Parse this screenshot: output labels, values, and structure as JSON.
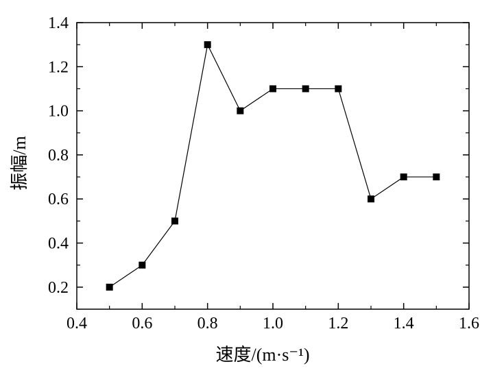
{
  "chart_data": {
    "type": "line",
    "title": "",
    "xlabel": "速度/(m·s⁻¹)",
    "ylabel": "振幅/m",
    "xlim": [
      0.4,
      1.6
    ],
    "ylim": [
      0.1,
      1.4
    ],
    "x_ticks": [
      0.4,
      0.6,
      0.8,
      1.0,
      1.2,
      1.4,
      1.6
    ],
    "x_tick_labels": [
      "0.4",
      "0.6",
      "0.8",
      "1.0",
      "1.2",
      "1.4",
      "1.6"
    ],
    "y_ticks": [
      0.2,
      0.4,
      0.6,
      0.8,
      1.0,
      1.2,
      1.4
    ],
    "y_tick_labels": [
      "0.2",
      "0.4",
      "0.6",
      "0.8",
      "1.0",
      "1.2",
      "1.4"
    ],
    "grid": false,
    "legend": "none",
    "marker": "square",
    "color": "#000000",
    "series": [
      {
        "x": [
          0.5,
          0.6,
          0.7,
          0.8,
          0.9,
          1.0,
          1.1,
          1.2,
          1.3,
          1.4,
          1.5
        ],
        "y": [
          0.2,
          0.3,
          0.5,
          1.3,
          1.0,
          1.1,
          1.1,
          1.1,
          0.6,
          0.7,
          0.7
        ]
      }
    ]
  }
}
